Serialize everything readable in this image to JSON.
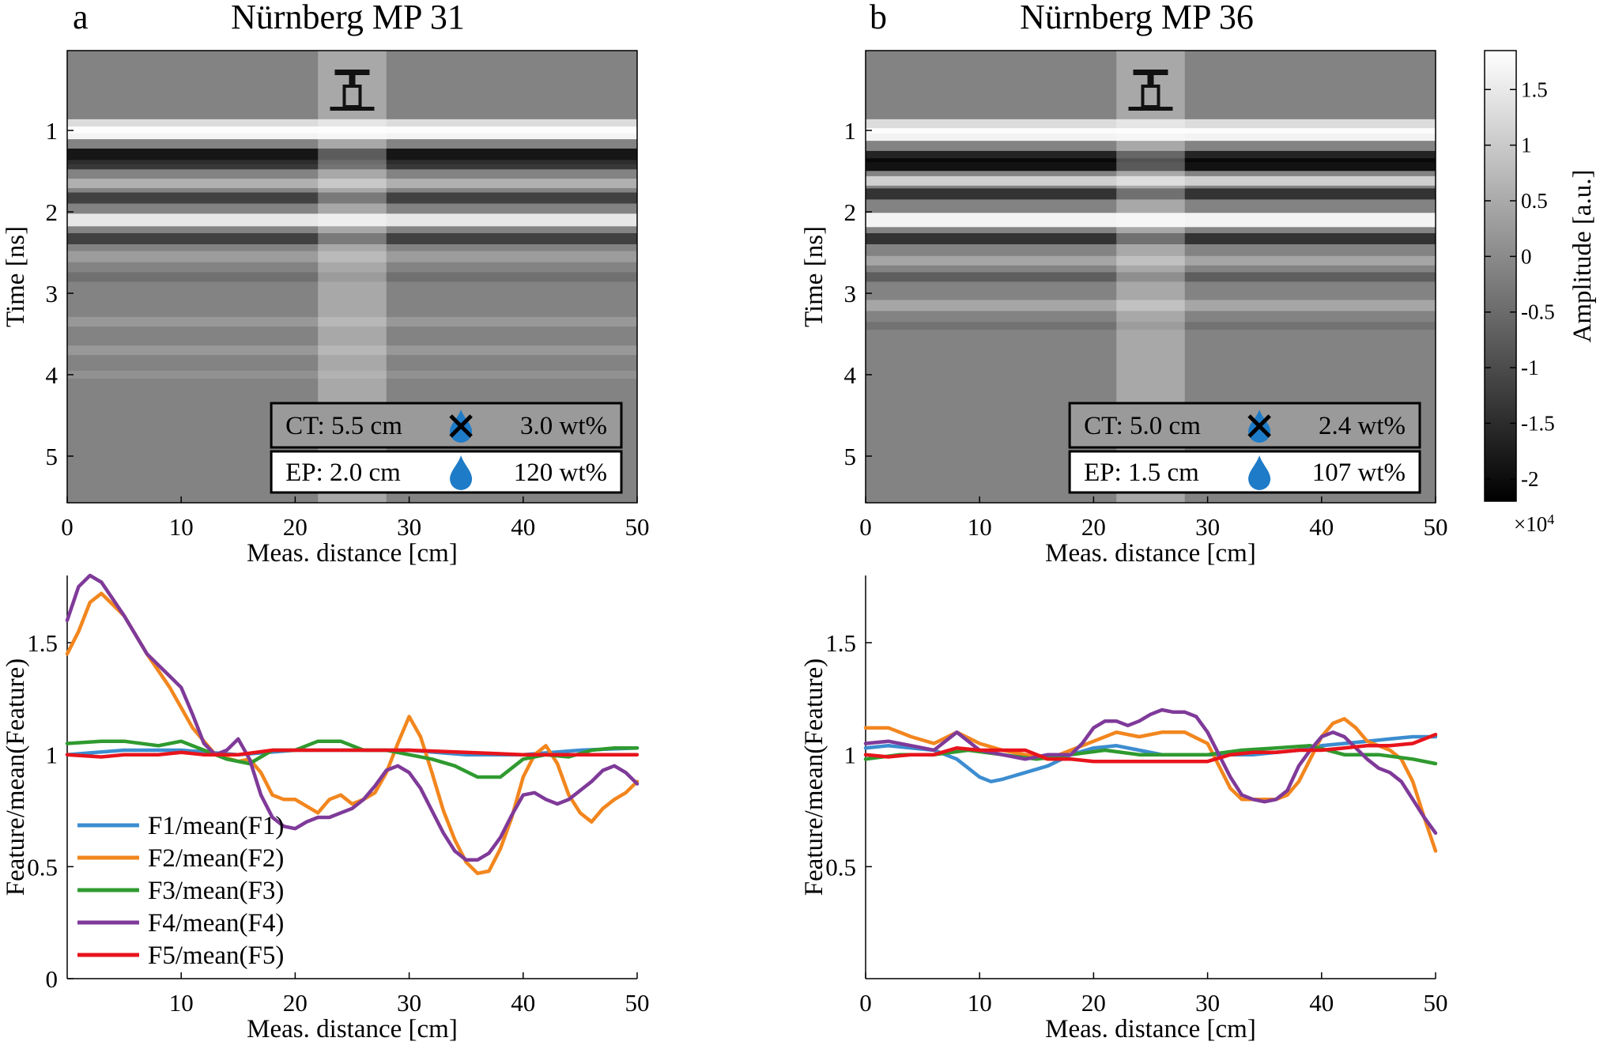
{
  "figure": {
    "colorbar": {
      "label": "Amplitude [a.u.]",
      "ticks": [
        "1.5",
        "1",
        "0.5",
        "0",
        "-0.5",
        "-1",
        "-1.5",
        "-2"
      ],
      "tick_values": [
        1.5,
        1,
        0.5,
        0,
        -0.5,
        -1,
        -1.5,
        -2
      ],
      "range": [
        -2.2,
        1.85
      ],
      "exponent": "×10",
      "exponent_power": "4"
    },
    "panels": [
      {
        "letter": "a",
        "title": "Nürnberg MP 31",
        "radargram": {
          "ylabel": "Time [ns]",
          "xlabel": "Meas. distance [cm]",
          "yticks": [
            "1",
            "2",
            "3",
            "4",
            "5"
          ],
          "xticks": [
            "0",
            "10",
            "20",
            "30",
            "40",
            "50"
          ],
          "drill_band_cm": [
            22,
            28
          ],
          "ct_label": "CT: 5.5 cm",
          "ct_value": "3.0 wt%",
          "ep_label": "EP: 2.0 cm",
          "ep_value": "120 wt%"
        },
        "features": {
          "ylabel": "Feature/mean(Feature)",
          "xlabel": "Meas. distance [cm]",
          "yticks": [
            "0",
            "0.5",
            "1",
            "1.5"
          ],
          "xticks": [
            "10",
            "20",
            "30",
            "40",
            "50"
          ]
        }
      },
      {
        "letter": "b",
        "title": "Nürnberg MP 36",
        "radargram": {
          "ylabel": "Time [ns]",
          "xlabel": "Meas. distance [cm]",
          "yticks": [
            "1",
            "2",
            "3",
            "4",
            "5"
          ],
          "xticks": [
            "0",
            "10",
            "20",
            "30",
            "40",
            "50"
          ],
          "drill_band_cm": [
            22,
            28
          ],
          "ct_label": "CT: 5.0 cm",
          "ct_value": "2.4 wt%",
          "ep_label": "EP: 1.5 cm",
          "ep_value": "107 wt%"
        },
        "features": {
          "ylabel": "Feature/mean(Feature)",
          "xlabel": "Meas. distance [cm]",
          "yticks": [
            "0.5",
            "1",
            "1.5"
          ],
          "xticks": [
            "0",
            "10",
            "20",
            "30",
            "40",
            "50"
          ]
        }
      }
    ],
    "legend": [
      {
        "label": "F1/mean(F1)",
        "color": "#0072BD"
      },
      {
        "label": "F2/mean(F2)",
        "color": "#EDB120"
      },
      {
        "label": "F3/mean(F3)",
        "color": "#3A9A3A"
      },
      {
        "label": "F4/mean(F4)",
        "color": "#7E2F8E"
      },
      {
        "label": "F5/mean(F5)",
        "color": "#E8141C"
      }
    ],
    "icon_colors": {
      "water": "#1E7BC8",
      "x_mark": "#000000"
    }
  },
  "chart_data": [
    {
      "type": "line",
      "panel": "a",
      "xlabel": "Meas. distance [cm]",
      "ylabel": "Feature/mean(Feature)",
      "xlim": [
        0,
        50
      ],
      "ylim": [
        0,
        1.8
      ],
      "legend_placement": "bottom-left",
      "series": [
        {
          "name": "F1/mean(F1)",
          "color": "#3C8DD0",
          "x": [
            0,
            5,
            10,
            15,
            20,
            25,
            30,
            35,
            40,
            45,
            50
          ],
          "y": [
            1.0,
            1.02,
            1.02,
            1.0,
            1.02,
            1.02,
            1.02,
            1.0,
            1.0,
            1.02,
            1.03
          ]
        },
        {
          "name": "F2/mean(F2)",
          "color": "#F2861E",
          "x": [
            0,
            1,
            2,
            3,
            5,
            7,
            9,
            11,
            13,
            15,
            16,
            17,
            18,
            19,
            20,
            21,
            22,
            23,
            24,
            25,
            26,
            27,
            28,
            29,
            30,
            31,
            32,
            33,
            34,
            35,
            36,
            37,
            38,
            39,
            40,
            41,
            42,
            43,
            44,
            45,
            46,
            47,
            48,
            49,
            50
          ],
          "y": [
            1.45,
            1.55,
            1.68,
            1.72,
            1.62,
            1.45,
            1.3,
            1.12,
            1.0,
            0.97,
            0.98,
            0.92,
            0.82,
            0.8,
            0.8,
            0.77,
            0.74,
            0.8,
            0.82,
            0.78,
            0.8,
            0.83,
            0.92,
            1.05,
            1.17,
            1.08,
            0.92,
            0.75,
            0.62,
            0.52,
            0.47,
            0.48,
            0.58,
            0.72,
            0.9,
            1.0,
            1.04,
            0.96,
            0.82,
            0.74,
            0.7,
            0.76,
            0.8,
            0.83,
            0.88
          ]
        },
        {
          "name": "F3/mean(F3)",
          "color": "#2F9A2F",
          "x": [
            0,
            3,
            5,
            8,
            10,
            12,
            14,
            16,
            18,
            20,
            22,
            24,
            26,
            28,
            30,
            32,
            34,
            36,
            38,
            40,
            42,
            44,
            46,
            48,
            50
          ],
          "y": [
            1.05,
            1.06,
            1.06,
            1.04,
            1.06,
            1.02,
            0.98,
            0.96,
            1.02,
            1.02,
            1.06,
            1.06,
            1.02,
            1.02,
            1.0,
            0.98,
            0.95,
            0.9,
            0.9,
            0.98,
            1.0,
            0.99,
            1.02,
            1.03,
            1.03
          ]
        },
        {
          "name": "F4/mean(F4)",
          "color": "#7F3A99",
          "x": [
            0,
            1,
            2,
            3,
            5,
            7,
            9,
            10,
            11,
            12,
            13,
            14,
            15,
            16,
            17,
            18,
            19,
            20,
            21,
            22,
            23,
            24,
            25,
            26,
            27,
            28,
            29,
            30,
            31,
            32,
            33,
            34,
            35,
            36,
            37,
            38,
            39,
            40,
            41,
            42,
            43,
            44,
            45,
            46,
            47,
            48,
            49,
            50
          ],
          "y": [
            1.6,
            1.75,
            1.8,
            1.77,
            1.62,
            1.45,
            1.35,
            1.3,
            1.18,
            1.05,
            1.0,
            1.02,
            1.07,
            0.98,
            0.82,
            0.72,
            0.68,
            0.67,
            0.7,
            0.72,
            0.72,
            0.74,
            0.76,
            0.8,
            0.86,
            0.93,
            0.95,
            0.92,
            0.85,
            0.75,
            0.65,
            0.57,
            0.53,
            0.53,
            0.56,
            0.63,
            0.73,
            0.82,
            0.83,
            0.8,
            0.78,
            0.8,
            0.84,
            0.88,
            0.93,
            0.95,
            0.92,
            0.87
          ]
        },
        {
          "name": "F5/mean(F5)",
          "color": "#E8141C",
          "x": [
            0,
            3,
            5,
            8,
            10,
            12,
            15,
            18,
            20,
            25,
            30,
            35,
            40,
            45,
            50
          ],
          "y": [
            1.0,
            0.99,
            1.0,
            1.0,
            1.01,
            1.0,
            1.0,
            1.02,
            1.02,
            1.02,
            1.02,
            1.01,
            1.0,
            1.0,
            1.0
          ]
        }
      ]
    },
    {
      "type": "line",
      "panel": "b",
      "xlabel": "Meas. distance [cm]",
      "ylabel": "Feature/mean(Feature)",
      "xlim": [
        0,
        50
      ],
      "ylim": [
        0,
        1.8
      ],
      "series": [
        {
          "name": "F1/mean(F1)",
          "color": "#3C8DD0",
          "x": [
            0,
            2,
            4,
            6,
            8,
            10,
            11,
            12,
            14,
            16,
            18,
            20,
            22,
            24,
            26,
            28,
            30,
            32,
            34,
            36,
            38,
            40,
            42,
            44,
            46,
            48,
            50
          ],
          "y": [
            1.03,
            1.04,
            1.03,
            1.02,
            0.98,
            0.9,
            0.88,
            0.89,
            0.92,
            0.95,
            1.0,
            1.03,
            1.04,
            1.02,
            1.0,
            1.0,
            1.0,
            1.0,
            1.0,
            1.01,
            1.02,
            1.04,
            1.05,
            1.06,
            1.07,
            1.08,
            1.08
          ]
        },
        {
          "name": "F2/mean(F2)",
          "color": "#F2861E",
          "x": [
            0,
            2,
            4,
            6,
            8,
            10,
            12,
            14,
            16,
            18,
            20,
            22,
            24,
            26,
            28,
            30,
            31,
            32,
            33,
            34,
            35,
            36,
            37,
            38,
            39,
            40,
            41,
            42,
            43,
            44,
            45,
            46,
            47,
            48,
            49,
            50
          ],
          "y": [
            1.12,
            1.12,
            1.08,
            1.05,
            1.1,
            1.05,
            1.02,
            1.0,
            0.98,
            1.02,
            1.06,
            1.1,
            1.08,
            1.1,
            1.1,
            1.05,
            0.95,
            0.85,
            0.8,
            0.8,
            0.8,
            0.8,
            0.82,
            0.88,
            0.98,
            1.08,
            1.14,
            1.16,
            1.12,
            1.06,
            1.04,
            1.02,
            0.98,
            0.88,
            0.72,
            0.57
          ]
        },
        {
          "name": "F3/mean(F3)",
          "color": "#2F9A2F",
          "x": [
            0,
            3,
            6,
            9,
            12,
            15,
            18,
            21,
            24,
            27,
            30,
            33,
            36,
            39,
            42,
            45,
            48,
            50
          ],
          "y": [
            0.98,
            1.0,
            1.0,
            1.02,
            1.0,
            0.98,
            1.0,
            1.02,
            1.0,
            1.0,
            1.0,
            1.02,
            1.03,
            1.04,
            1.0,
            1.0,
            0.98,
            0.96
          ]
        },
        {
          "name": "F4/mean(F4)",
          "color": "#7F3A99",
          "x": [
            0,
            2,
            4,
            6,
            8,
            10,
            12,
            14,
            16,
            18,
            19,
            20,
            21,
            22,
            23,
            24,
            25,
            26,
            27,
            28,
            29,
            30,
            31,
            32,
            33,
            34,
            35,
            36,
            37,
            38,
            39,
            40,
            41,
            42,
            43,
            44,
            45,
            46,
            47,
            48,
            49,
            50
          ],
          "y": [
            1.05,
            1.06,
            1.04,
            1.02,
            1.1,
            1.02,
            1.0,
            0.98,
            1.0,
            1.0,
            1.05,
            1.12,
            1.15,
            1.15,
            1.13,
            1.15,
            1.18,
            1.2,
            1.19,
            1.19,
            1.17,
            1.1,
            1.0,
            0.9,
            0.82,
            0.8,
            0.79,
            0.8,
            0.84,
            0.95,
            1.02,
            1.08,
            1.1,
            1.08,
            1.03,
            0.98,
            0.94,
            0.92,
            0.88,
            0.8,
            0.72,
            0.65
          ]
        },
        {
          "name": "F5/mean(F5)",
          "color": "#E8141C",
          "x": [
            0,
            2,
            4,
            6,
            8,
            10,
            12,
            14,
            16,
            18,
            20,
            22,
            24,
            26,
            28,
            30,
            32,
            34,
            36,
            38,
            40,
            42,
            44,
            46,
            48,
            50
          ],
          "y": [
            1.0,
            0.99,
            1.0,
            1.0,
            1.03,
            1.02,
            1.02,
            1.02,
            0.98,
            0.98,
            0.97,
            0.97,
            0.97,
            0.97,
            0.97,
            0.97,
            1.0,
            1.01,
            1.01,
            1.02,
            1.02,
            1.03,
            1.04,
            1.04,
            1.05,
            1.09
          ]
        }
      ]
    }
  ]
}
